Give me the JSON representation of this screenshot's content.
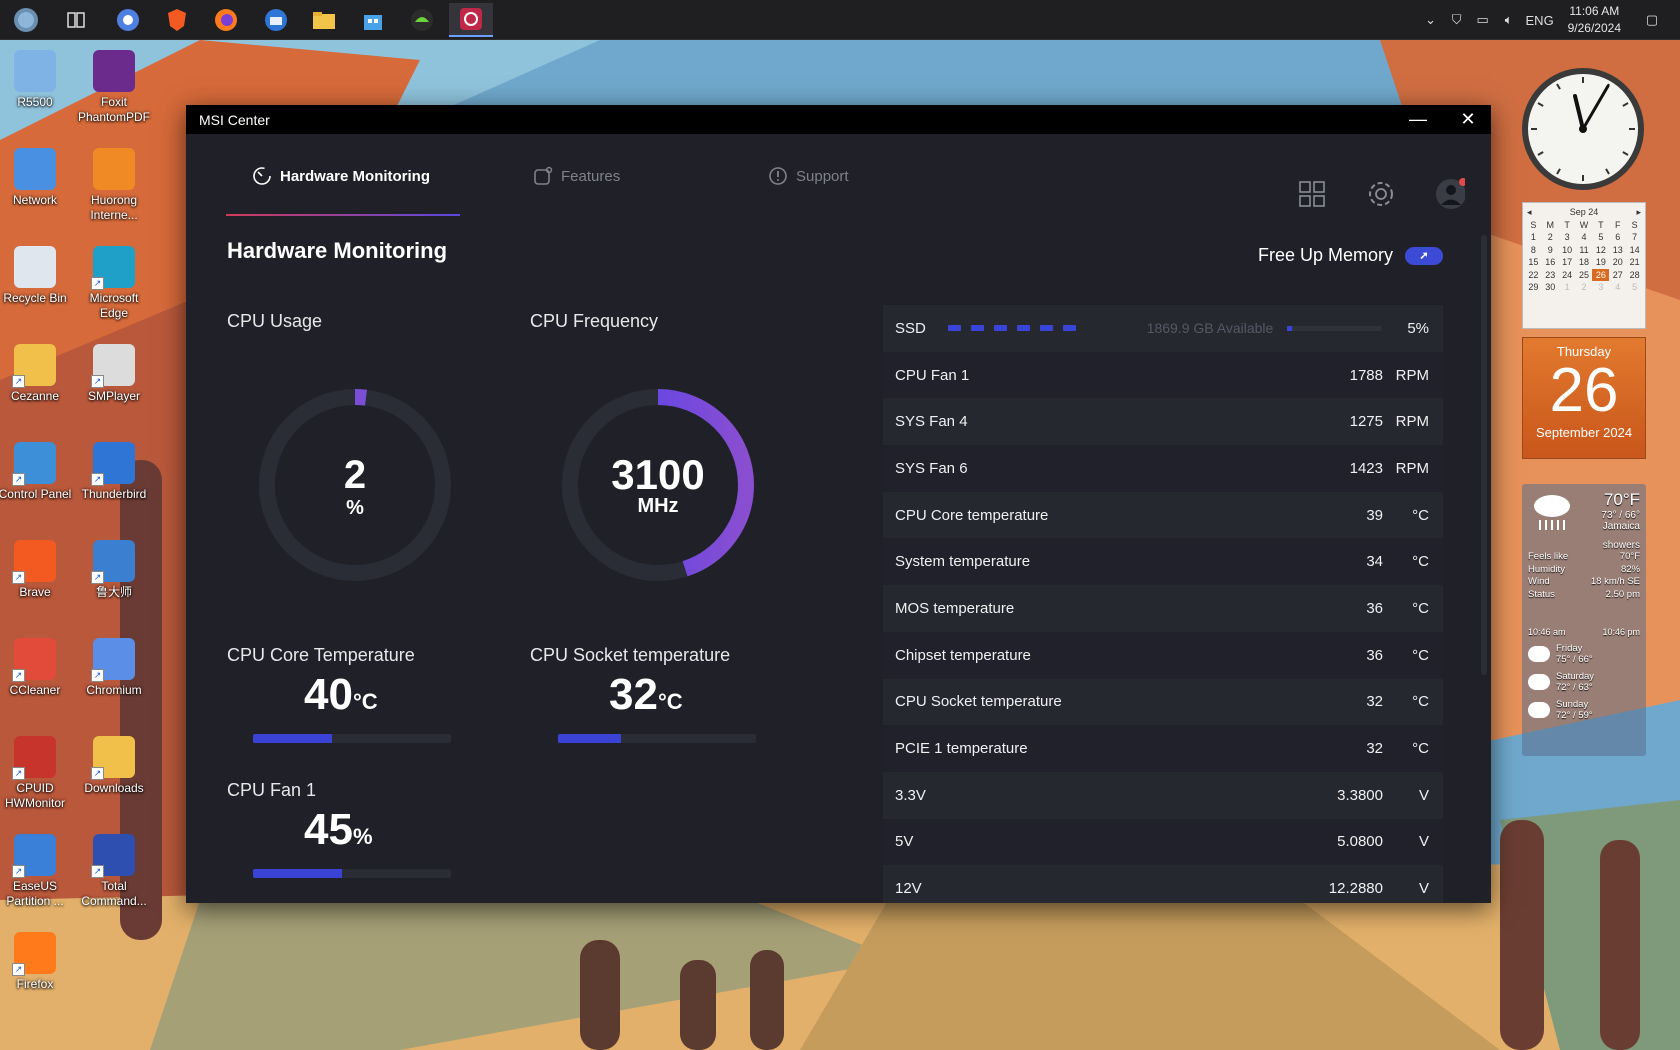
{
  "taskbar": {
    "apps": [
      "start",
      "task-view",
      "chrome",
      "brave",
      "firefox",
      "thunderbird",
      "file-explorer",
      "store",
      "nvidia",
      "msi-center"
    ],
    "lang": "ENG",
    "time": "11:06 AM",
    "date": "9/26/2024"
  },
  "desktop_icons": [
    {
      "label": "R5500",
      "icon": "computer-icon"
    },
    {
      "label": "Foxit PhantomPDF",
      "icon": "pdf-icon"
    },
    {
      "label": "Network",
      "icon": "network-icon"
    },
    {
      "label": "Huorong Interne...",
      "icon": "huorong-icon"
    },
    {
      "label": "Recycle Bin",
      "icon": "recycle-bin-icon"
    },
    {
      "label": "Microsoft Edge",
      "icon": "edge-icon"
    },
    {
      "label": "Cezanne",
      "icon": "user-folder-icon"
    },
    {
      "label": "SMPlayer",
      "icon": "smplayer-icon"
    },
    {
      "label": "Control Panel",
      "icon": "control-panel-icon"
    },
    {
      "label": "Thunderbird",
      "icon": "thunderbird-icon"
    },
    {
      "label": "Brave",
      "icon": "brave-icon"
    },
    {
      "label": "鲁大师",
      "icon": "ludashi-icon"
    },
    {
      "label": "CCleaner",
      "icon": "ccleaner-icon"
    },
    {
      "label": "Chromium",
      "icon": "chromium-icon"
    },
    {
      "label": "CPUID HWMonitor",
      "icon": "hwmonitor-icon"
    },
    {
      "label": "Downloads",
      "icon": "downloads-icon"
    },
    {
      "label": "EaseUS Partition ...",
      "icon": "easeus-icon"
    },
    {
      "label": "Total Command...",
      "icon": "total-commander-icon"
    },
    {
      "label": "Firefox",
      "icon": "firefox-icon"
    }
  ],
  "window": {
    "title": "MSI Center",
    "minimize": "—",
    "close": "✕"
  },
  "nav": {
    "tabs": [
      {
        "label": "Hardware Monitoring",
        "active": true
      },
      {
        "label": "Features",
        "active": false
      },
      {
        "label": "Support",
        "active": false
      }
    ]
  },
  "main": {
    "title": "Hardware Monitoring",
    "free_memory": "Free Up Memory",
    "cpu_usage": {
      "label": "CPU Usage",
      "value": "2",
      "unit": "%",
      "fraction": 0.02
    },
    "cpu_freq": {
      "label": "CPU Frequency",
      "value": "3100",
      "unit": "MHz",
      "fraction": 0.45
    },
    "cpu_core_temp": {
      "label": "CPU Core Temperature",
      "value": "40",
      "unit": "°C",
      "fraction": 0.4
    },
    "cpu_socket_temp": {
      "label": "CPU Socket temperature",
      "value": "32",
      "unit": "°C",
      "fraction": 0.32
    },
    "cpu_fan": {
      "label": "CPU Fan 1",
      "value": "45",
      "unit": "%",
      "fraction": 0.45
    }
  },
  "sensors": {
    "ssd": {
      "name": "SSD",
      "available": "1869.9 GB Available",
      "percent": "5%",
      "fraction": 0.05
    },
    "rows": [
      {
        "name": "CPU Fan 1",
        "value": "1788",
        "unit": "RPM"
      },
      {
        "name": "SYS Fan 4",
        "value": "1275",
        "unit": "RPM"
      },
      {
        "name": "SYS Fan 6",
        "value": "1423",
        "unit": "RPM"
      },
      {
        "name": "CPU Core temperature",
        "value": "39",
        "unit": "°C"
      },
      {
        "name": "System temperature",
        "value": "34",
        "unit": "°C"
      },
      {
        "name": "MOS temperature",
        "value": "36",
        "unit": "°C"
      },
      {
        "name": "Chipset temperature",
        "value": "36",
        "unit": "°C"
      },
      {
        "name": "CPU Socket temperature",
        "value": "32",
        "unit": "°C"
      },
      {
        "name": "PCIE 1 temperature",
        "value": "32",
        "unit": "°C"
      },
      {
        "name": "3.3V",
        "value": "3.3800",
        "unit": "V"
      },
      {
        "name": "5V",
        "value": "5.0800",
        "unit": "V"
      },
      {
        "name": "12V",
        "value": "12.2880",
        "unit": "V"
      }
    ]
  },
  "widgets": {
    "calendar": {
      "month": "Sep 24",
      "weekdays": [
        "S",
        "M",
        "T",
        "W",
        "T",
        "F",
        "S"
      ],
      "days": [
        "1",
        "2",
        "3",
        "4",
        "5",
        "6",
        "7",
        "8",
        "9",
        "10",
        "11",
        "12",
        "13",
        "14",
        "15",
        "16",
        "17",
        "18",
        "19",
        "20",
        "21",
        "22",
        "23",
        "24",
        "25",
        "26",
        "27",
        "28",
        "29",
        "30",
        "1",
        "2",
        "3",
        "4",
        "5"
      ],
      "today": "26"
    },
    "datepad": {
      "dow": "Thursday",
      "day": "26",
      "month": "September 2024"
    },
    "weather": {
      "temp": "70°F",
      "range": "73° / 66°",
      "location": "Jamaica",
      "condition": "showers",
      "details": [
        {
          "k": "Feels like",
          "v": "70°F"
        },
        {
          "k": "Humidity",
          "v": "82%"
        },
        {
          "k": "Wind",
          "v": "18 km/h SE"
        },
        {
          "k": "Status",
          "v": "2.50 pm"
        }
      ],
      "sunrise": "10:46 am",
      "sunset": "10:46 pm",
      "forecast": [
        {
          "day": "Friday",
          "temps": "75° / 66°"
        },
        {
          "day": "Saturday",
          "temps": "72° / 63°"
        },
        {
          "day": "Sunday",
          "temps": "72° / 59°"
        }
      ]
    }
  },
  "colors": {
    "accent": "#3b44d8",
    "accent_red": "#d13a5a",
    "window_bg": "#202128"
  }
}
